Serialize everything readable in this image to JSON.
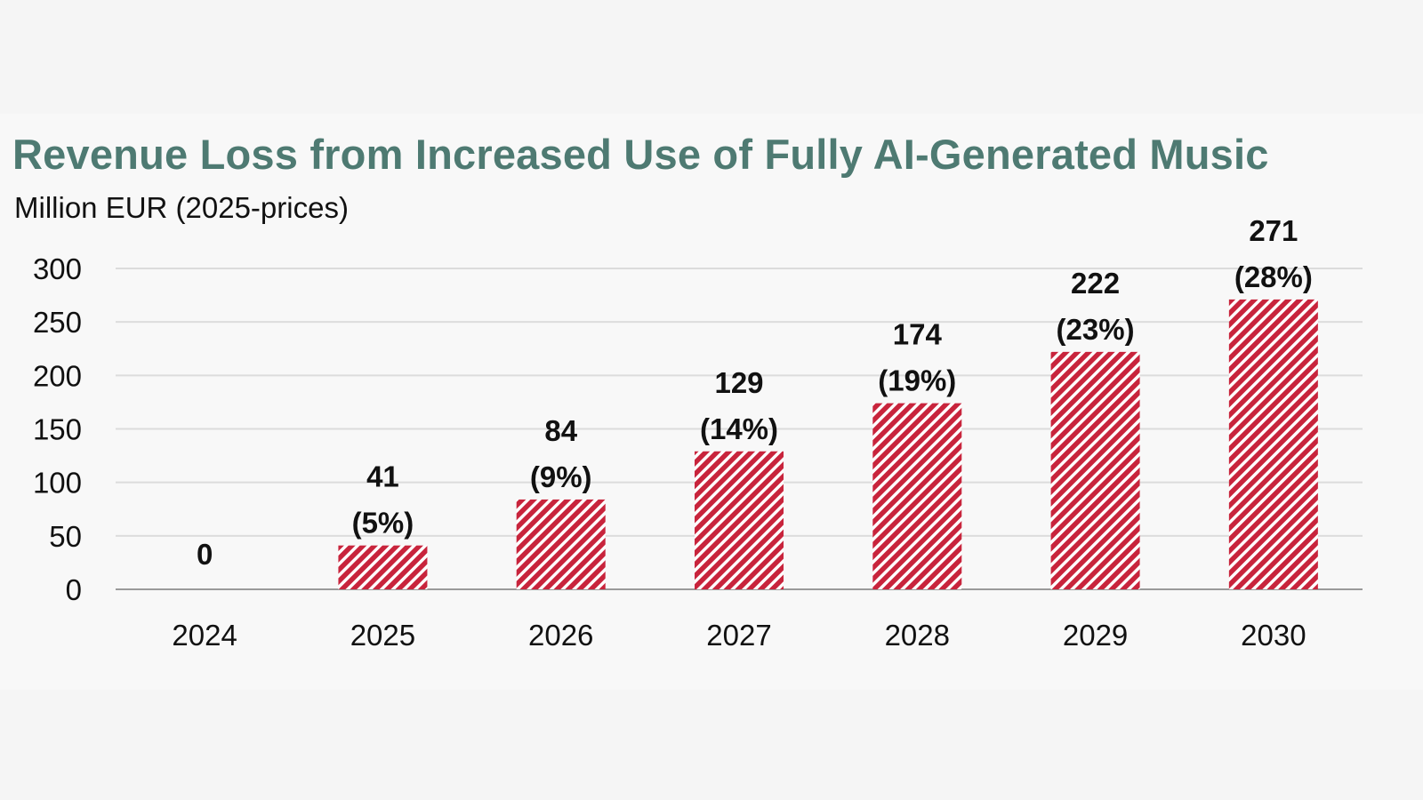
{
  "chart_data": {
    "type": "bar",
    "title": "Revenue Loss from Increased Use of Fully AI-Generated Music",
    "subtitle": "Million EUR (2025-prices)",
    "categories": [
      "2024",
      "2025",
      "2026",
      "2027",
      "2028",
      "2029",
      "2030"
    ],
    "values": [
      0,
      41,
      84,
      129,
      174,
      222,
      271
    ],
    "value_labels": [
      "0",
      "41",
      "84",
      "129",
      "174",
      "222",
      "271"
    ],
    "percent_labels": [
      "",
      "(5%)",
      "(9%)",
      "(14%)",
      "(19%)",
      "(23%)",
      "(28%)"
    ],
    "ylim": [
      0,
      300
    ],
    "yticks": [
      "0",
      "50",
      "100",
      "150",
      "200",
      "250",
      "300"
    ],
    "grid": true,
    "legend": "none",
    "colors": {
      "bar_hatch": "#c8243c",
      "bar_background": "#ffffff",
      "title": "#4e7a72",
      "gridline": "#dcdcdc",
      "axis": "#9a9a9a"
    }
  }
}
